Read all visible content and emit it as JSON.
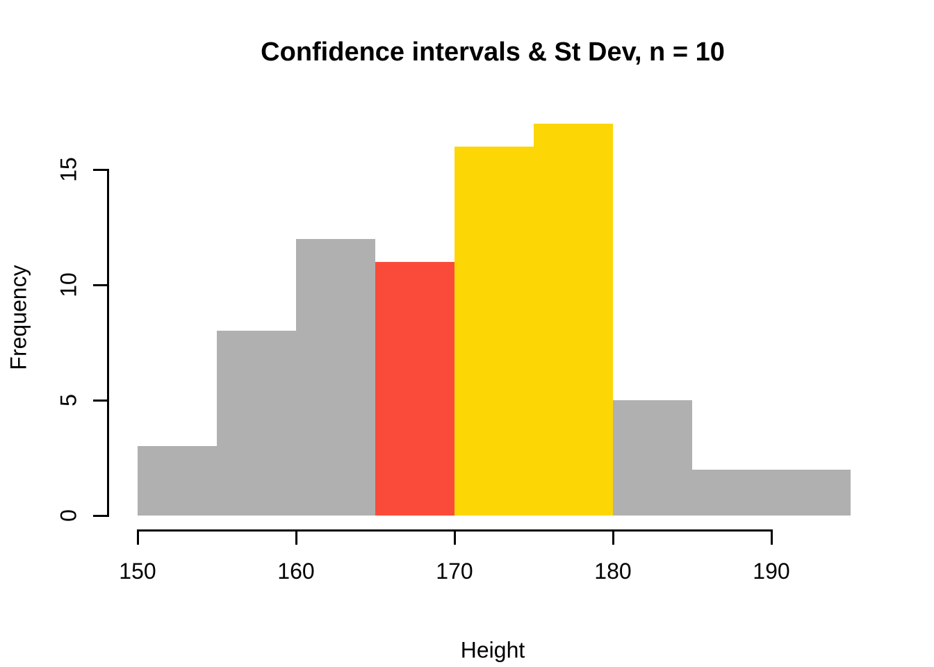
{
  "chart_data": {
    "type": "bar",
    "subtype": "histogram",
    "title": "Confidence intervals & St Dev, n = 10",
    "xlabel": "Height",
    "ylabel": "Frequency",
    "x_ticks": [
      150,
      160,
      170,
      180,
      190
    ],
    "y_ticks": [
      0,
      5,
      10,
      15
    ],
    "xlim": [
      150,
      195
    ],
    "ylim": [
      0,
      17
    ],
    "bin_width": 5,
    "grid": "off",
    "legend": "none",
    "bins": [
      {
        "x0": 150,
        "x1": 155,
        "count": 3,
        "color_key": "gray"
      },
      {
        "x0": 155,
        "x1": 160,
        "count": 8,
        "color_key": "gray"
      },
      {
        "x0": 160,
        "x1": 165,
        "count": 12,
        "color_key": "gray"
      },
      {
        "x0": 165,
        "x1": 170,
        "count": 11,
        "color_key": "red"
      },
      {
        "x0": 170,
        "x1": 175,
        "count": 16,
        "color_key": "yellow"
      },
      {
        "x0": 175,
        "x1": 180,
        "count": 17,
        "color_key": "yellow"
      },
      {
        "x0": 180,
        "x1": 185,
        "count": 5,
        "color_key": "gray"
      },
      {
        "x0": 185,
        "x1": 190,
        "count": 2,
        "color_key": "gray"
      },
      {
        "x0": 190,
        "x1": 195,
        "count": 2,
        "color_key": "gray"
      }
    ],
    "colors": {
      "gray": "#B0B0B0",
      "red": "#FA4B3A",
      "yellow": "#FCD605",
      "axis": "#000000",
      "background": "#FFFFFF"
    }
  }
}
